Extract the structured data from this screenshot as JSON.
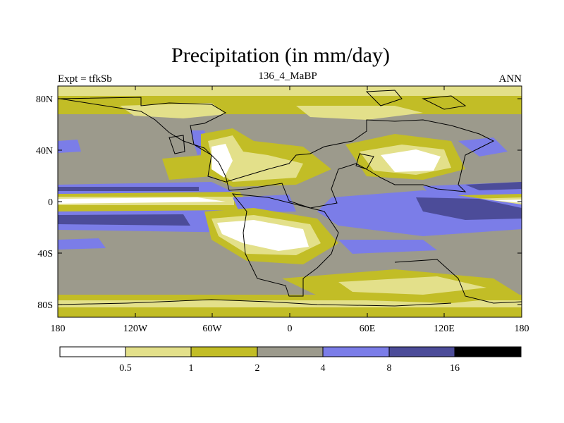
{
  "title": "Precipitation (in mm/day)",
  "left_label": "Expt = tfkSb",
  "center_label": "136_4_MaBP",
  "right_label": "ANN",
  "lat_ticks": [
    "80N",
    "40N",
    "0",
    "40S",
    "80S"
  ],
  "lon_ticks": [
    "180",
    "120W",
    "60W",
    "0",
    "60E",
    "120E",
    "180"
  ],
  "colorbar": {
    "levels": [
      "0.5",
      "1",
      "2",
      "4",
      "8",
      "16"
    ],
    "colors": [
      "#ffffff",
      "#e3e08a",
      "#c2bd26",
      "#9c9a8c",
      "#7b7de8",
      "#4c4c99",
      "#000000"
    ]
  },
  "map_colors": {
    "white": "#ffffff",
    "light": "#e3e08a",
    "olive": "#c2bd26",
    "gray": "#9c9a8c",
    "blue": "#7b7de8",
    "navy": "#4c4c99"
  }
}
